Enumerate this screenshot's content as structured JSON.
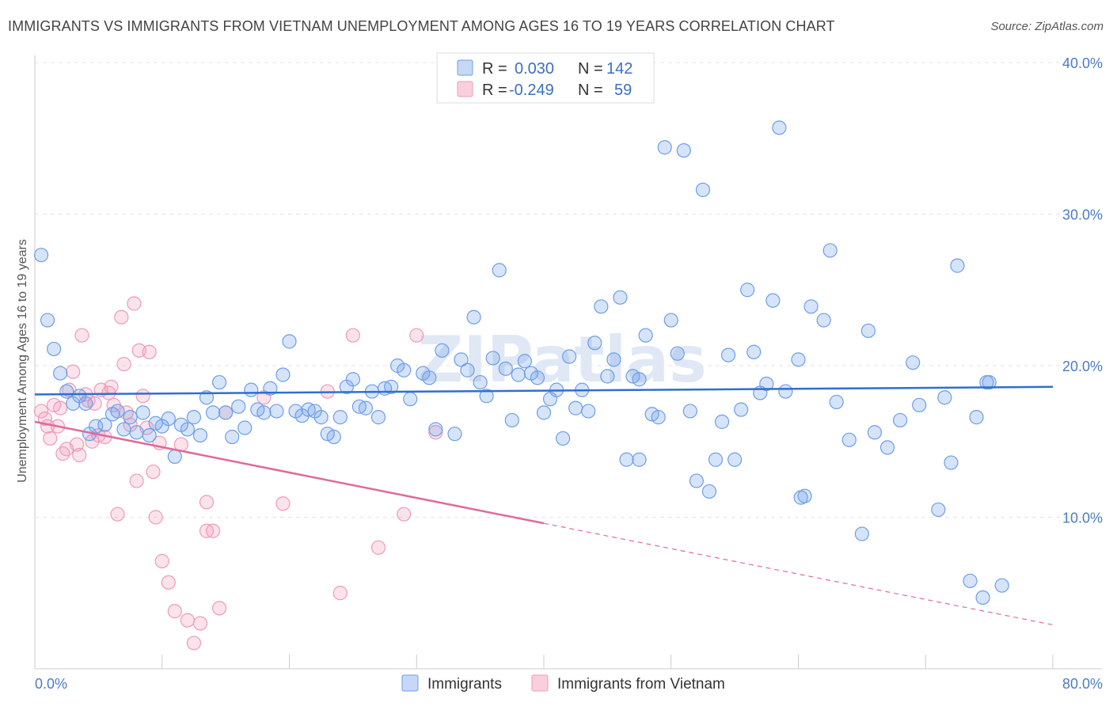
{
  "title": "IMMIGRANTS VS IMMIGRANTS FROM VIETNAM UNEMPLOYMENT AMONG AGES 16 TO 19 YEARS CORRELATION CHART",
  "source": "Source: ZipAtlas.com",
  "watermark": "ZIPatlas",
  "legend": {
    "r_label": "R =",
    "n_label": "N =",
    "rows": [
      {
        "r": "0.030",
        "n": "142",
        "color": "#6d9ee8"
      },
      {
        "r": "-0.249",
        "n": "59",
        "color": "#f09ab6"
      }
    ]
  },
  "colors": {
    "immigrants": "#6d9ee8",
    "vietnam": "#f09ab6",
    "immigrants_line": "#2f6fcf",
    "vietnam_line": "#e06a9a"
  },
  "chart_data": {
    "type": "scatter",
    "title": "IMMIGRANTS VS IMMIGRANTS FROM VIETNAM UNEMPLOYMENT AMONG AGES 16 TO 19 YEARS CORRELATION CHART",
    "xlabel": "",
    "ylabel": "Unemployment Among Ages 16 to 19 years",
    "xlim": [
      0,
      80
    ],
    "ylim": [
      0,
      40
    ],
    "x_tick_labels": [
      "0.0%",
      "80.0%"
    ],
    "y_ticks": [
      {
        "value": 10,
        "label": "10.0%"
      },
      {
        "value": 20,
        "label": "20.0%"
      },
      {
        "value": 30,
        "label": "30.0%"
      },
      {
        "value": 40,
        "label": "40.0%"
      }
    ],
    "grid": true,
    "legend_position": "bottom",
    "series": [
      {
        "name": "Immigrants",
        "color": "#6d9ee8",
        "trend": {
          "x": [
            0,
            80
          ],
          "y": [
            18.1,
            18.6
          ]
        },
        "points": [
          [
            0.5,
            27.3
          ],
          [
            1,
            23
          ],
          [
            1.5,
            21.1
          ],
          [
            2,
            19.5
          ],
          [
            2.5,
            18.3
          ],
          [
            3,
            17.5
          ],
          [
            3.5,
            18
          ],
          [
            4,
            17.5
          ],
          [
            4.3,
            15.5
          ],
          [
            4.8,
            16
          ],
          [
            5.5,
            16.1
          ],
          [
            6.1,
            16.8
          ],
          [
            6.5,
            17
          ],
          [
            7,
            15.8
          ],
          [
            7.5,
            16.6
          ],
          [
            8,
            15.6
          ],
          [
            8.5,
            16.9
          ],
          [
            9,
            15.4
          ],
          [
            9.5,
            16.2
          ],
          [
            10,
            16
          ],
          [
            10.5,
            16.5
          ],
          [
            11,
            14
          ],
          [
            11.5,
            16.1
          ],
          [
            12,
            15.8
          ],
          [
            12.5,
            16.6
          ],
          [
            13,
            15.4
          ],
          [
            13.5,
            17.9
          ],
          [
            14,
            16.9
          ],
          [
            14.5,
            18.9
          ],
          [
            15,
            16.9
          ],
          [
            15.5,
            15.3
          ],
          [
            16,
            17.3
          ],
          [
            16.5,
            15.9
          ],
          [
            17,
            18.4
          ],
          [
            17.5,
            17.1
          ],
          [
            18,
            16.9
          ],
          [
            18.5,
            18.5
          ],
          [
            19,
            17
          ],
          [
            19.5,
            19.4
          ],
          [
            20,
            21.6
          ],
          [
            20.5,
            17
          ],
          [
            21,
            16.7
          ],
          [
            21.5,
            17.1
          ],
          [
            22,
            17
          ],
          [
            22.5,
            16.6
          ],
          [
            23,
            15.5
          ],
          [
            23.5,
            15.3
          ],
          [
            24,
            16.6
          ],
          [
            24.5,
            18.6
          ],
          [
            25,
            19.1
          ],
          [
            25.5,
            17.3
          ],
          [
            26,
            17.2
          ],
          [
            26.5,
            18.3
          ],
          [
            27,
            16.6
          ],
          [
            27.5,
            18.5
          ],
          [
            28,
            18.6
          ],
          [
            28.5,
            20
          ],
          [
            29,
            19.7
          ],
          [
            29.5,
            17.8
          ],
          [
            30.5,
            19.5
          ],
          [
            31,
            19.2
          ],
          [
            31.5,
            15.8
          ],
          [
            32,
            21
          ],
          [
            33,
            15.5
          ],
          [
            33.5,
            20.4
          ],
          [
            34,
            19.7
          ],
          [
            34.5,
            23.2
          ],
          [
            35,
            18.9
          ],
          [
            35.5,
            18
          ],
          [
            36,
            20.5
          ],
          [
            36.5,
            26.3
          ],
          [
            37,
            19.8
          ],
          [
            37.5,
            16.4
          ],
          [
            38,
            19.4
          ],
          [
            38.5,
            20.3
          ],
          [
            39,
            19.5
          ],
          [
            39.5,
            19.2
          ],
          [
            40,
            16.9
          ],
          [
            40.5,
            17.8
          ],
          [
            41,
            18.4
          ],
          [
            41.5,
            15.2
          ],
          [
            42,
            20.6
          ],
          [
            42.5,
            17.2
          ],
          [
            43,
            18.4
          ],
          [
            43.5,
            17
          ],
          [
            44,
            21.5
          ],
          [
            44.5,
            23.9
          ],
          [
            45,
            19.3
          ],
          [
            45.5,
            20.4
          ],
          [
            46,
            24.5
          ],
          [
            46.5,
            13.8
          ],
          [
            47,
            19.3
          ],
          [
            47.5,
            19.1
          ],
          [
            48,
            22
          ],
          [
            48.5,
            16.8
          ],
          [
            49,
            16.6
          ],
          [
            49.5,
            34.4
          ],
          [
            50,
            23
          ],
          [
            50.5,
            20.8
          ],
          [
            51,
            34.2
          ],
          [
            51.5,
            17
          ],
          [
            52,
            12.4
          ],
          [
            52.5,
            31.6
          ],
          [
            53,
            11.7
          ],
          [
            53.5,
            13.8
          ],
          [
            54,
            16.3
          ],
          [
            54.5,
            20.7
          ],
          [
            55,
            13.8
          ],
          [
            55.5,
            17.1
          ],
          [
            56,
            25
          ],
          [
            56.5,
            20.9
          ],
          [
            57,
            18.2
          ],
          [
            57.5,
            18.8
          ],
          [
            58,
            24.3
          ],
          [
            58.5,
            35.7
          ],
          [
            59,
            18.3
          ],
          [
            60,
            20.4
          ],
          [
            60.5,
            11.4
          ],
          [
            61,
            23.9
          ],
          [
            62,
            23
          ],
          [
            62.5,
            27.6
          ],
          [
            63,
            17.6
          ],
          [
            64,
            15.1
          ],
          [
            65,
            8.9
          ],
          [
            65.5,
            22.3
          ],
          [
            66,
            15.6
          ],
          [
            67,
            14.6
          ],
          [
            68,
            16.4
          ],
          [
            69,
            20.2
          ],
          [
            69.5,
            17.4
          ],
          [
            71,
            10.5
          ],
          [
            71.5,
            17.9
          ],
          [
            72,
            13.6
          ],
          [
            72.5,
            26.6
          ],
          [
            73.5,
            5.8
          ],
          [
            74,
            16.6
          ],
          [
            74.5,
            4.7
          ],
          [
            75,
            18.9
          ],
          [
            76,
            5.5
          ],
          [
            74.8,
            18.9
          ],
          [
            47.5,
            13.8
          ],
          [
            60.2,
            11.3
          ]
        ]
      },
      {
        "name": "Immigrants from Vietnam",
        "color": "#f09ab6",
        "trend": {
          "x": [
            0,
            40
          ],
          "y": [
            16.3,
            9.6
          ]
        },
        "trend_dashed": {
          "x": [
            40,
            80
          ],
          "y": [
            9.6,
            2.9
          ]
        },
        "points": [
          [
            0.5,
            17
          ],
          [
            0.8,
            16.5
          ],
          [
            1,
            16
          ],
          [
            1.2,
            15.2
          ],
          [
            1.5,
            17.4
          ],
          [
            1.8,
            16
          ],
          [
            2,
            17.2
          ],
          [
            2.2,
            14.2
          ],
          [
            2.5,
            14.5
          ],
          [
            2.7,
            18.4
          ],
          [
            3,
            19.6
          ],
          [
            3.3,
            14.8
          ],
          [
            3.5,
            14.1
          ],
          [
            3.7,
            22
          ],
          [
            4,
            18.1
          ],
          [
            4.2,
            17.7
          ],
          [
            4.5,
            15
          ],
          [
            4.7,
            17.5
          ],
          [
            5,
            15.4
          ],
          [
            5.2,
            18.4
          ],
          [
            5.5,
            15.3
          ],
          [
            5.8,
            18.2
          ],
          [
            6,
            18.6
          ],
          [
            6.2,
            17.4
          ],
          [
            6.5,
            10.2
          ],
          [
            6.8,
            23.2
          ],
          [
            7,
            20.1
          ],
          [
            7.2,
            16.9
          ],
          [
            7.5,
            16.1
          ],
          [
            7.8,
            24.1
          ],
          [
            8,
            12.4
          ],
          [
            8.2,
            21
          ],
          [
            8.5,
            18
          ],
          [
            8.8,
            15.9
          ],
          [
            9,
            20.9
          ],
          [
            9.3,
            13
          ],
          [
            9.5,
            10
          ],
          [
            9.8,
            14.9
          ],
          [
            10,
            7.1
          ],
          [
            10.5,
            5.7
          ],
          [
            11,
            3.8
          ],
          [
            11.5,
            14.8
          ],
          [
            12,
            3.2
          ],
          [
            12.5,
            1.7
          ],
          [
            13,
            3
          ],
          [
            13.5,
            11
          ],
          [
            14,
            9.1
          ],
          [
            14.5,
            4
          ],
          [
            15,
            16.9
          ],
          [
            18,
            17.9
          ],
          [
            19.5,
            10.9
          ],
          [
            23,
            18.3
          ],
          [
            24,
            5
          ],
          [
            25,
            22
          ],
          [
            27,
            8
          ],
          [
            29,
            10.2
          ],
          [
            30,
            22
          ],
          [
            31.5,
            15.6
          ],
          [
            13.5,
            9.1
          ]
        ]
      }
    ]
  }
}
